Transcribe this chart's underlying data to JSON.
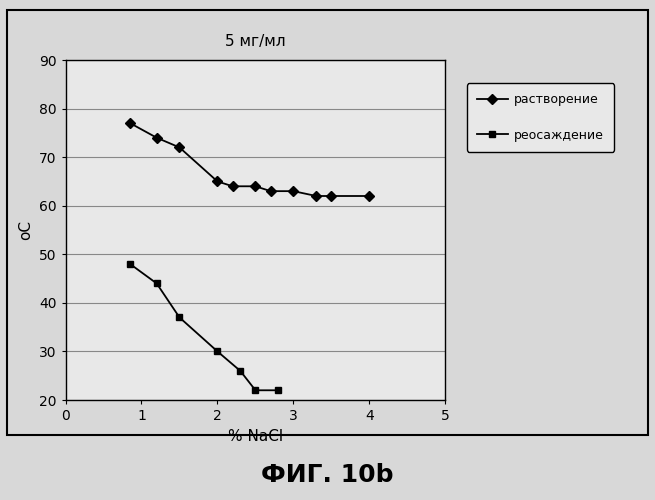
{
  "title": "5 мг/мл",
  "xlabel": "% NaCl",
  "ylabel": "oC",
  "xlim": [
    0,
    5
  ],
  "ylim": [
    20,
    90
  ],
  "yticks": [
    20,
    30,
    40,
    50,
    60,
    70,
    80,
    90
  ],
  "xticks": [
    0,
    1,
    2,
    3,
    4,
    5
  ],
  "series1_label": "растворение",
  "series1_x": [
    0.85,
    1.2,
    1.5,
    2.0,
    2.2,
    2.5,
    2.7,
    3.0,
    3.3,
    3.5,
    4.0
  ],
  "series1_y": [
    77,
    74,
    72,
    65,
    64,
    64,
    63,
    63,
    62,
    62,
    62
  ],
  "series2_label": "реосаждение",
  "series2_x": [
    0.85,
    1.2,
    1.5,
    2.0,
    2.3,
    2.5,
    2.8
  ],
  "series2_y": [
    48,
    44,
    37,
    30,
    26,
    22,
    22
  ],
  "line_color": "#000000",
  "bg_color": "#d8d8d8",
  "plot_bg_color": "#e8e8e8",
  "caption": "ФИГ. 10b",
  "title_fontsize": 11,
  "label_fontsize": 11,
  "tick_fontsize": 10,
  "caption_fontsize": 18
}
